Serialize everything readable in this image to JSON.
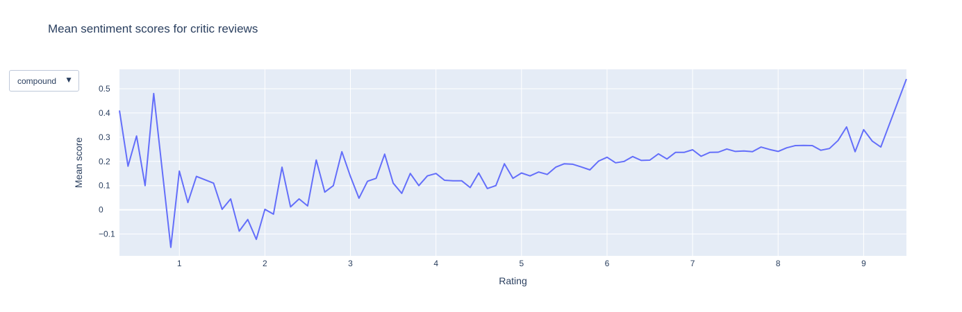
{
  "title": "Mean sentiment scores for critic reviews",
  "dropdown": {
    "selected": "compound",
    "arrow_icon": "triangle-down-icon"
  },
  "colors": {
    "line": "#636efa",
    "plot_bg": "#e5ecf6",
    "grid": "#ffffff",
    "text": "#2a3f5f"
  },
  "chart_data": {
    "type": "line",
    "title": "Mean sentiment scores for critic reviews",
    "xlabel": "Rating",
    "ylabel": "Mean score",
    "xlim": [
      0.3,
      9.5
    ],
    "ylim": [
      -0.19,
      0.58
    ],
    "xticks": [
      1,
      2,
      3,
      4,
      5,
      6,
      7,
      8,
      9
    ],
    "xtick_labels": [
      "1",
      "2",
      "3",
      "4",
      "5",
      "6",
      "7",
      "8",
      "9"
    ],
    "yticks": [
      -0.1,
      0,
      0.1,
      0.2,
      0.3,
      0.4,
      0.5
    ],
    "ytick_labels": [
      "−0.1",
      "0",
      "0.1",
      "0.2",
      "0.3",
      "0.4",
      "0.5"
    ],
    "grid": true,
    "series": [
      {
        "name": "",
        "x": [
          0.3,
          0.4,
          0.5,
          0.6,
          0.7,
          0.9,
          1.0,
          1.1,
          1.2,
          1.4,
          1.5,
          1.6,
          1.7,
          1.8,
          1.9,
          2.0,
          2.1,
          2.2,
          2.3,
          2.4,
          2.5,
          2.6,
          2.7,
          2.8,
          2.9,
          3.0,
          3.1,
          3.2,
          3.3,
          3.4,
          3.5,
          3.6,
          3.7,
          3.8,
          3.9,
          4.0,
          4.1,
          4.2,
          4.3,
          4.4,
          4.5,
          4.6,
          4.7,
          4.8,
          4.9,
          5.0,
          5.1,
          5.2,
          5.3,
          5.4,
          5.5,
          5.6,
          5.7,
          5.8,
          5.9,
          6.0,
          6.1,
          6.2,
          6.3,
          6.4,
          6.5,
          6.6,
          6.7,
          6.8,
          6.9,
          7.0,
          7.1,
          7.2,
          7.3,
          7.4,
          7.5,
          7.6,
          7.7,
          7.8,
          7.9,
          8.0,
          8.1,
          8.2,
          8.3,
          8.4,
          8.5,
          8.6,
          8.7,
          8.8,
          8.9,
          9.0,
          9.1,
          9.2,
          9.5
        ],
        "y": [
          0.41,
          0.18,
          0.305,
          0.1,
          0.48,
          -0.155,
          0.16,
          0.03,
          0.138,
          0.11,
          0.002,
          0.045,
          -0.088,
          -0.04,
          -0.122,
          0.002,
          -0.018,
          0.176,
          0.012,
          0.045,
          0.016,
          0.206,
          0.073,
          0.1,
          0.24,
          0.138,
          0.048,
          0.118,
          0.13,
          0.23,
          0.11,
          0.068,
          0.15,
          0.1,
          0.14,
          0.15,
          0.122,
          0.12,
          0.12,
          0.092,
          0.152,
          0.088,
          0.1,
          0.19,
          0.13,
          0.152,
          0.14,
          0.156,
          0.146,
          0.176,
          0.19,
          0.188,
          0.177,
          0.165,
          0.201,
          0.217,
          0.194,
          0.2,
          0.22,
          0.204,
          0.205,
          0.231,
          0.21,
          0.237,
          0.237,
          0.248,
          0.221,
          0.237,
          0.238,
          0.251,
          0.241,
          0.243,
          0.24,
          0.259,
          0.249,
          0.241,
          0.256,
          0.265,
          0.266,
          0.265,
          0.246,
          0.253,
          0.286,
          0.342,
          0.24,
          0.331,
          0.284,
          0.259,
          0.54
        ]
      }
    ]
  }
}
